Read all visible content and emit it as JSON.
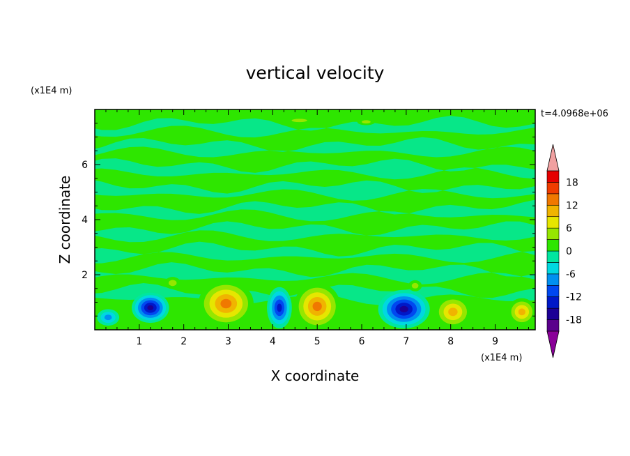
{
  "chart_data": {
    "type": "heatmap",
    "title": "vertical velocity",
    "xlabel": "X coordinate",
    "ylabel": "Z coordinate",
    "x_units": "(x1E4 m)",
    "y_units": "(x1E4 m)",
    "time_label": "t=4.0968e+06",
    "xlim": [
      0,
      9.9
    ],
    "ylim": [
      0,
      8
    ],
    "x_ticks": [
      "1",
      "2",
      "3",
      "4",
      "5",
      "6",
      "7",
      "8",
      "9"
    ],
    "y_ticks": [
      "2",
      "4",
      "6"
    ],
    "colorbar": {
      "levels": [
        -21,
        -18,
        -15,
        -12,
        -9,
        -6,
        -3,
        0,
        3,
        6,
        9,
        12,
        15,
        18,
        21
      ],
      "labels": [
        "18",
        "12",
        "6",
        "0",
        "-6",
        "-12",
        "-18"
      ],
      "colors": [
        "#8a0099",
        "#5a008c",
        "#1c0096",
        "#0018c8",
        "#0048f0",
        "#0090f0",
        "#00d8e0",
        "#00e6a0",
        "#2ee600",
        "#96e600",
        "#e6e600",
        "#f0b400",
        "#f07800",
        "#f03c00",
        "#e60000",
        "#f0a0a0"
      ]
    },
    "cells": [
      {
        "x": 1.25,
        "z": 0.8,
        "rx": 0.42,
        "rz": 0.55,
        "w": -17
      },
      {
        "x": 0.3,
        "z": 0.45,
        "rx": 0.25,
        "rz": 0.3,
        "w": -9
      },
      {
        "x": 1.75,
        "z": 1.7,
        "rx": 0.18,
        "rz": 0.22,
        "w": 6
      },
      {
        "x": 2.95,
        "z": 0.95,
        "rx": 0.62,
        "rz": 0.85,
        "w": 14
      },
      {
        "x": 4.15,
        "z": 0.8,
        "rx": 0.28,
        "rz": 0.75,
        "w": -15
      },
      {
        "x": 5.0,
        "z": 0.85,
        "rx": 0.52,
        "rz": 0.85,
        "w": 15
      },
      {
        "x": 6.95,
        "z": 0.75,
        "rx": 0.58,
        "rz": 0.7,
        "w": -17
      },
      {
        "x": 8.05,
        "z": 0.65,
        "rx": 0.42,
        "rz": 0.6,
        "w": 13
      },
      {
        "x": 9.6,
        "z": 0.65,
        "rx": 0.32,
        "rz": 0.5,
        "w": 12
      },
      {
        "x": 7.2,
        "z": 1.6,
        "rx": 0.15,
        "rz": 0.2,
        "w": 5
      },
      {
        "x": 4.6,
        "z": 7.6,
        "rx": 0.35,
        "rz": 0.12,
        "w": 6
      },
      {
        "x": 6.1,
        "z": 7.55,
        "rx": 0.2,
        "rz": 0.12,
        "w": 6
      }
    ]
  }
}
